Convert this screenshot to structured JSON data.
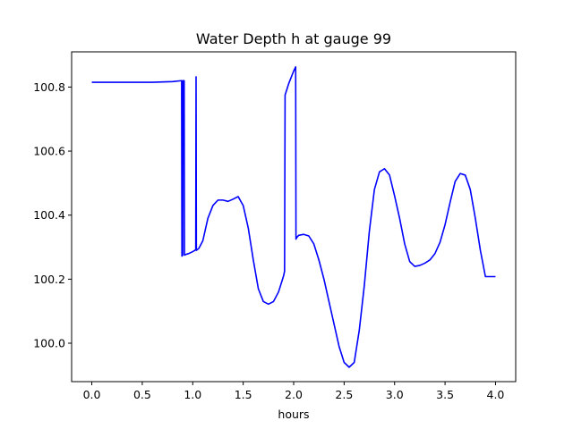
{
  "chart_data": {
    "type": "line",
    "title": "Water Depth h at gauge 99",
    "xlabel": "hours",
    "ylabel": "",
    "xlim": [
      -0.2,
      4.2
    ],
    "ylim": [
      99.88,
      100.91
    ],
    "x_ticks": [
      0.0,
      0.5,
      1.0,
      1.5,
      2.0,
      2.5,
      3.0,
      3.5,
      4.0
    ],
    "x_tick_labels": [
      "0.0",
      "0.5",
      "1.0",
      "1.5",
      "2.0",
      "2.5",
      "3.0",
      "3.5",
      "4.0"
    ],
    "y_ticks": [
      100.0,
      100.2,
      100.4,
      100.6,
      100.8
    ],
    "y_tick_labels": [
      "100.0",
      "100.2",
      "100.4",
      "100.6",
      "100.8"
    ],
    "grid": false,
    "legend": "none",
    "series": [
      {
        "color": "#0000ff",
        "x": [
          0.0,
          0.3,
          0.6,
          0.8,
          0.89,
          0.893,
          0.9,
          0.903,
          0.915,
          0.918,
          0.93,
          0.96,
          1.0,
          1.03,
          1.033,
          1.036,
          1.06,
          1.1,
          1.15,
          1.2,
          1.25,
          1.3,
          1.35,
          1.4,
          1.45,
          1.5,
          1.55,
          1.6,
          1.65,
          1.7,
          1.75,
          1.8,
          1.85,
          1.9,
          1.91,
          1.915,
          1.95,
          2.0,
          2.02,
          2.023,
          2.03,
          2.05,
          2.1,
          2.15,
          2.2,
          2.25,
          2.3,
          2.35,
          2.4,
          2.45,
          2.5,
          2.55,
          2.6,
          2.65,
          2.7,
          2.75,
          2.8,
          2.85,
          2.9,
          2.95,
          3.0,
          3.05,
          3.1,
          3.15,
          3.2,
          3.25,
          3.3,
          3.35,
          3.4,
          3.45,
          3.5,
          3.55,
          3.6,
          3.65,
          3.7,
          3.75,
          3.8,
          3.85,
          3.9,
          3.95,
          4.0
        ],
        "y": [
          100.815,
          100.815,
          100.815,
          100.817,
          100.82,
          100.272,
          100.275,
          100.82,
          100.82,
          100.275,
          100.277,
          100.28,
          100.286,
          100.292,
          100.832,
          100.29,
          100.296,
          100.32,
          100.39,
          100.43,
          100.447,
          100.447,
          100.443,
          100.45,
          100.458,
          100.43,
          100.36,
          100.26,
          100.17,
          100.13,
          100.122,
          100.13,
          100.16,
          100.21,
          100.225,
          100.775,
          100.81,
          100.85,
          100.863,
          100.325,
          100.33,
          100.337,
          100.34,
          100.335,
          100.31,
          100.26,
          100.2,
          100.13,
          100.06,
          99.99,
          99.94,
          99.925,
          99.94,
          100.04,
          100.18,
          100.35,
          100.48,
          100.535,
          100.545,
          100.525,
          100.46,
          100.39,
          100.31,
          100.255,
          100.24,
          100.243,
          100.25,
          100.26,
          100.28,
          100.315,
          100.37,
          100.44,
          100.505,
          100.53,
          100.525,
          100.48,
          100.39,
          100.29,
          100.208,
          100.208,
          100.208
        ]
      }
    ]
  }
}
